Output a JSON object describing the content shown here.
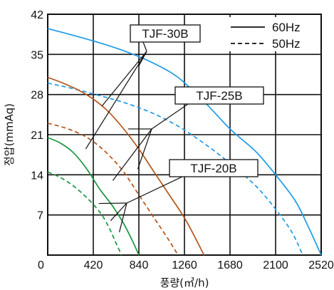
{
  "chart_data": {
    "type": "line",
    "xlabel": "풍량(㎥/h)",
    "ylabel": "정압(mmAq)",
    "xlim": [
      0,
      2520
    ],
    "ylim": [
      0,
      42
    ],
    "xticks": [
      "0",
      "420",
      "840",
      "1260",
      "1680",
      "2100",
      "2520"
    ],
    "yticks": [
      "0",
      "7",
      "14",
      "21",
      "28",
      "35",
      "42"
    ],
    "grid": true,
    "legend_position": "top-right",
    "legend": [
      {
        "label": "60Hz",
        "style": "solid"
      },
      {
        "label": "50Hz",
        "style": "dashed"
      }
    ],
    "series": [
      {
        "name": "TJF-30B",
        "freq": "60Hz",
        "color": "#1e9be6",
        "dashed": false,
        "x": [
          0,
          240,
          480,
          720,
          960,
          1200,
          1440,
          1680,
          1920,
          2100,
          2280,
          2400,
          2520
        ],
        "y": [
          39.5,
          38.3,
          37.0,
          35.5,
          33.6,
          31.0,
          26.8,
          22.0,
          18.0,
          14.0,
          9.5,
          5.0,
          0
        ]
      },
      {
        "name": "TJF-30B",
        "freq": "50Hz",
        "color": "#1e9be6",
        "dashed": true,
        "x": [
          0,
          240,
          480,
          720,
          960,
          1200,
          1440,
          1680,
          1920,
          2100,
          2250,
          2350
        ],
        "y": [
          30.0,
          29.0,
          27.8,
          26.5,
          24.8,
          22.5,
          19.5,
          16.0,
          12.0,
          8.0,
          4.0,
          0
        ]
      },
      {
        "name": "TJF-25B",
        "freq": "60Hz",
        "color": "#b5541b",
        "dashed": false,
        "x": [
          0,
          140,
          280,
          420,
          560,
          700,
          840,
          980,
          1120,
          1260,
          1360,
          1440
        ],
        "y": [
          31.0,
          30.0,
          28.8,
          27.2,
          25.0,
          22.0,
          18.5,
          14.5,
          10.5,
          6.5,
          3.0,
          0
        ]
      },
      {
        "name": "TJF-25B",
        "freq": "50Hz",
        "color": "#b5541b",
        "dashed": true,
        "x": [
          0,
          140,
          280,
          420,
          560,
          700,
          840,
          980,
          1120,
          1200
        ],
        "y": [
          23.0,
          22.3,
          21.3,
          19.8,
          17.5,
          14.5,
          10.5,
          6.5,
          2.5,
          0
        ]
      },
      {
        "name": "TJF-20B",
        "freq": "60Hz",
        "color": "#1a9640",
        "dashed": false,
        "x": [
          0,
          120,
          240,
          360,
          480,
          600,
          700,
          780,
          840
        ],
        "y": [
          20.5,
          19.5,
          17.8,
          15.0,
          11.5,
          8.5,
          5.5,
          2.5,
          0
        ]
      },
      {
        "name": "TJF-20B",
        "freq": "50Hz",
        "color": "#1a9640",
        "dashed": true,
        "x": [
          0,
          120,
          240,
          360,
          480,
          560,
          620,
          680
        ],
        "y": [
          14.5,
          13.5,
          12.0,
          10.0,
          7.5,
          5.0,
          2.5,
          0
        ]
      }
    ],
    "annotations": [
      {
        "text": "TJF-30B",
        "points_to": [
          [
            840,
            33
          ],
          [
            500,
            26
          ],
          [
            350,
            18.5
          ]
        ]
      },
      {
        "text": "TJF-25B",
        "points_to": [
          [
            740,
            22
          ],
          [
            830,
            15
          ],
          [
            600,
            13
          ]
        ]
      },
      {
        "text": "TJF-20B",
        "points_to": [
          [
            470,
            9
          ],
          [
            580,
            6
          ],
          [
            660,
            4
          ]
        ]
      }
    ]
  }
}
